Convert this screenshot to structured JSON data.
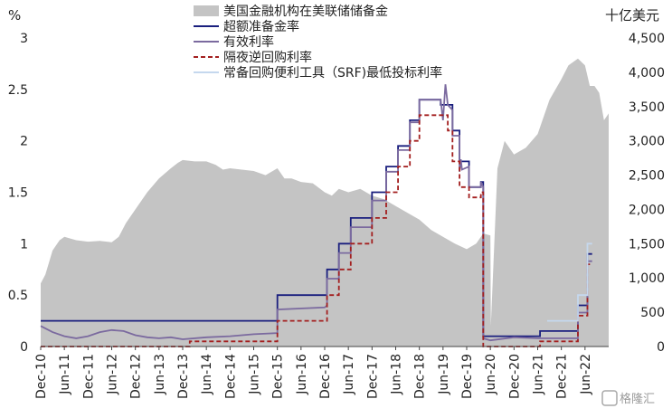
{
  "chart_data": {
    "type": "line",
    "left_axis": {
      "unit": "%",
      "ylim": [
        0,
        3
      ],
      "ticks": [
        "0",
        "0.5",
        "1",
        "1.5",
        "2",
        "2.5",
        "3"
      ]
    },
    "right_axis": {
      "unit": "十亿美元",
      "ylim": [
        0,
        4500
      ],
      "ticks": [
        "0",
        "500",
        "1,000",
        "1,500",
        "2,000",
        "2,500",
        "3,000",
        "3,500",
        "4,000",
        "4,500"
      ]
    },
    "x_ticks": [
      "Dec-10",
      "Jun-11",
      "Dec-11",
      "Jun-12",
      "Dec-12",
      "Jun-13",
      "Dec-13",
      "Jun-14",
      "Dec-14",
      "Jun-15",
      "Dec-15",
      "Jun-16",
      "Dec-16",
      "Jun-17",
      "Dec-17",
      "Jun-18",
      "Dec-18",
      "Jun-19",
      "Dec-19",
      "Jun-20",
      "Dec-20",
      "Jun-21",
      "Dec-21",
      "Jun-22"
    ],
    "legend_position": "top-left",
    "series": [
      {
        "name": "美国金融机构在美联储储备金",
        "kind": "area",
        "axis": "right",
        "color": "#c4c4c4",
        "points": [
          [
            0,
            920
          ],
          [
            0.2,
            1050
          ],
          [
            0.5,
            1400
          ],
          [
            0.8,
            1550
          ],
          [
            1,
            1600
          ],
          [
            1.5,
            1550
          ],
          [
            2,
            1530
          ],
          [
            2.5,
            1540
          ],
          [
            3,
            1520
          ],
          [
            3.3,
            1600
          ],
          [
            3.6,
            1800
          ],
          [
            4,
            2000
          ],
          [
            4.5,
            2250
          ],
          [
            5,
            2450
          ],
          [
            5.5,
            2600
          ],
          [
            5.8,
            2680
          ],
          [
            6,
            2720
          ],
          [
            6.5,
            2700
          ],
          [
            7,
            2700
          ],
          [
            7.4,
            2650
          ],
          [
            7.7,
            2580
          ],
          [
            8,
            2600
          ],
          [
            8.5,
            2580
          ],
          [
            9,
            2560
          ],
          [
            9.5,
            2500
          ],
          [
            10,
            2600
          ],
          [
            10.3,
            2450
          ],
          [
            10.6,
            2450
          ],
          [
            11,
            2400
          ],
          [
            11.5,
            2380
          ],
          [
            12,
            2250
          ],
          [
            12.3,
            2200
          ],
          [
            12.6,
            2300
          ],
          [
            13,
            2250
          ],
          [
            13.5,
            2300
          ],
          [
            14,
            2200
          ],
          [
            14.5,
            2150
          ],
          [
            15,
            2050
          ],
          [
            15.5,
            1950
          ],
          [
            16,
            1850
          ],
          [
            16.5,
            1700
          ],
          [
            17,
            1600
          ],
          [
            17.5,
            1500
          ],
          [
            18,
            1420
          ],
          [
            18.4,
            1500
          ],
          [
            18.7,
            1650
          ],
          [
            19,
            1620
          ],
          [
            19.02,
            300
          ],
          [
            19.3,
            2600
          ],
          [
            19.6,
            3000
          ],
          [
            20,
            2800
          ],
          [
            20.5,
            2900
          ],
          [
            21,
            3100
          ],
          [
            21.5,
            3600
          ],
          [
            22,
            3900
          ],
          [
            22.3,
            4100
          ],
          [
            22.7,
            4200
          ],
          [
            23,
            4100
          ],
          [
            23.2,
            3800
          ],
          [
            23.4,
            3800
          ],
          [
            23.6,
            3700
          ],
          [
            23.8,
            3300
          ],
          [
            24,
            3400
          ],
          [
            24,
            0
          ],
          [
            0,
            0
          ]
        ]
      },
      {
        "name": "超额准备金率",
        "kind": "step",
        "axis": "left",
        "color": "#1a1f7e",
        "points": [
          [
            0,
            0.25
          ],
          [
            10,
            0.25
          ],
          [
            10,
            0.5
          ],
          [
            12.1,
            0.5
          ],
          [
            12.1,
            0.75
          ],
          [
            12.6,
            0.75
          ],
          [
            12.6,
            1.0
          ],
          [
            13.1,
            1.0
          ],
          [
            13.1,
            1.25
          ],
          [
            14,
            1.25
          ],
          [
            14,
            1.5
          ],
          [
            14.6,
            1.5
          ],
          [
            14.6,
            1.75
          ],
          [
            15.1,
            1.75
          ],
          [
            15.1,
            1.95
          ],
          [
            15.6,
            1.95
          ],
          [
            15.6,
            2.2
          ],
          [
            16,
            2.2
          ],
          [
            16,
            2.4
          ],
          [
            16.9,
            2.4
          ],
          [
            16.9,
            2.35
          ],
          [
            17.4,
            2.35
          ],
          [
            17.4,
            2.1
          ],
          [
            17.7,
            2.1
          ],
          [
            17.7,
            1.8
          ],
          [
            18.1,
            1.8
          ],
          [
            18.1,
            1.55
          ],
          [
            18.6,
            1.55
          ],
          [
            18.6,
            1.6
          ],
          [
            18.7,
            1.6
          ],
          [
            18.7,
            0.1
          ],
          [
            21.1,
            0.1
          ],
          [
            21.1,
            0.15
          ],
          [
            22.7,
            0.15
          ],
          [
            22.7,
            0.4
          ],
          [
            23.1,
            0.4
          ],
          [
            23.1,
            0.9
          ],
          [
            23.3,
            0.9
          ]
        ]
      },
      {
        "name": "有效利率",
        "kind": "line",
        "axis": "left",
        "color": "#7b6a9f",
        "points": [
          [
            0,
            0.2
          ],
          [
            0.5,
            0.14
          ],
          [
            1,
            0.1
          ],
          [
            1.5,
            0.08
          ],
          [
            2,
            0.1
          ],
          [
            2.5,
            0.14
          ],
          [
            3,
            0.16
          ],
          [
            3.5,
            0.15
          ],
          [
            4,
            0.11
          ],
          [
            4.5,
            0.09
          ],
          [
            5,
            0.08
          ],
          [
            5.5,
            0.09
          ],
          [
            6,
            0.07
          ],
          [
            7,
            0.09
          ],
          [
            8,
            0.1
          ],
          [
            9,
            0.12
          ],
          [
            10,
            0.13
          ],
          [
            10,
            0.36
          ],
          [
            12,
            0.38
          ],
          [
            12.1,
            0.4
          ],
          [
            12.1,
            0.66
          ],
          [
            12.6,
            0.66
          ],
          [
            12.6,
            0.91
          ],
          [
            13.1,
            0.91
          ],
          [
            13.1,
            1.16
          ],
          [
            14,
            1.16
          ],
          [
            14,
            1.42
          ],
          [
            14.6,
            1.42
          ],
          [
            14.6,
            1.7
          ],
          [
            15.1,
            1.7
          ],
          [
            15.1,
            1.91
          ],
          [
            15.6,
            1.91
          ],
          [
            15.6,
            2.18
          ],
          [
            16,
            2.18
          ],
          [
            16,
            2.4
          ],
          [
            16.5,
            2.4
          ],
          [
            16.9,
            2.4
          ],
          [
            17,
            2.2
          ],
          [
            17.1,
            2.55
          ],
          [
            17.2,
            2.35
          ],
          [
            17.4,
            2.3
          ],
          [
            17.4,
            2.05
          ],
          [
            17.7,
            2.05
          ],
          [
            17.7,
            1.7
          ],
          [
            17.75,
            1.82
          ],
          [
            17.8,
            1.72
          ],
          [
            18.1,
            1.75
          ],
          [
            18.1,
            1.55
          ],
          [
            18.6,
            1.55
          ],
          [
            18.6,
            1.6
          ],
          [
            18.7,
            1.55
          ],
          [
            18.7,
            0.08
          ],
          [
            19,
            0.06
          ],
          [
            20,
            0.09
          ],
          [
            21,
            0.08
          ],
          [
            21.1,
            0.08
          ],
          [
            22.7,
            0.08
          ],
          [
            22.7,
            0.33
          ],
          [
            23.1,
            0.33
          ],
          [
            23.1,
            0.83
          ],
          [
            23.3,
            0.83
          ]
        ]
      },
      {
        "name": "隔夜逆回购利率",
        "kind": "step",
        "axis": "left",
        "color": "#a31f1f",
        "dashed": true,
        "points": [
          [
            0,
            0
          ],
          [
            6.3,
            0
          ],
          [
            6.3,
            0.05
          ],
          [
            9,
            0.05
          ],
          [
            9,
            0.05
          ],
          [
            10,
            0.05
          ],
          [
            10,
            0.25
          ],
          [
            12.1,
            0.25
          ],
          [
            12.1,
            0.5
          ],
          [
            12.6,
            0.5
          ],
          [
            12.6,
            0.75
          ],
          [
            13.1,
            0.75
          ],
          [
            13.1,
            1.0
          ],
          [
            14,
            1.0
          ],
          [
            14,
            1.25
          ],
          [
            14.6,
            1.25
          ],
          [
            14.6,
            1.5
          ],
          [
            15.1,
            1.5
          ],
          [
            15.1,
            1.75
          ],
          [
            15.6,
            1.75
          ],
          [
            15.6,
            2.0
          ],
          [
            16,
            2.0
          ],
          [
            16,
            2.25
          ],
          [
            16.9,
            2.25
          ],
          [
            16.9,
            2.25
          ],
          [
            17.2,
            2.25
          ],
          [
            17.2,
            2.1
          ],
          [
            17.4,
            2.1
          ],
          [
            17.4,
            1.8
          ],
          [
            17.7,
            1.8
          ],
          [
            17.7,
            1.55
          ],
          [
            18.1,
            1.55
          ],
          [
            18.1,
            1.45
          ],
          [
            18.6,
            1.45
          ],
          [
            18.6,
            1.5
          ],
          [
            18.7,
            1.5
          ],
          [
            18.7,
            0.0
          ],
          [
            21.1,
            0.0
          ],
          [
            21.1,
            0.05
          ],
          [
            22.7,
            0.05
          ],
          [
            22.7,
            0.3
          ],
          [
            23.1,
            0.3
          ],
          [
            23.1,
            0.8
          ],
          [
            23.3,
            0.8
          ]
        ]
      },
      {
        "name": "常备回购便利工具（SRF)最低投标利率",
        "kind": "step",
        "axis": "left",
        "color": "#c5d8ee",
        "points": [
          [
            21.4,
            0.25
          ],
          [
            22.7,
            0.25
          ],
          [
            22.7,
            0.5
          ],
          [
            23.1,
            0.5
          ],
          [
            23.1,
            1.0
          ],
          [
            23.3,
            1.0
          ]
        ]
      }
    ]
  },
  "watermark": "格隆汇"
}
